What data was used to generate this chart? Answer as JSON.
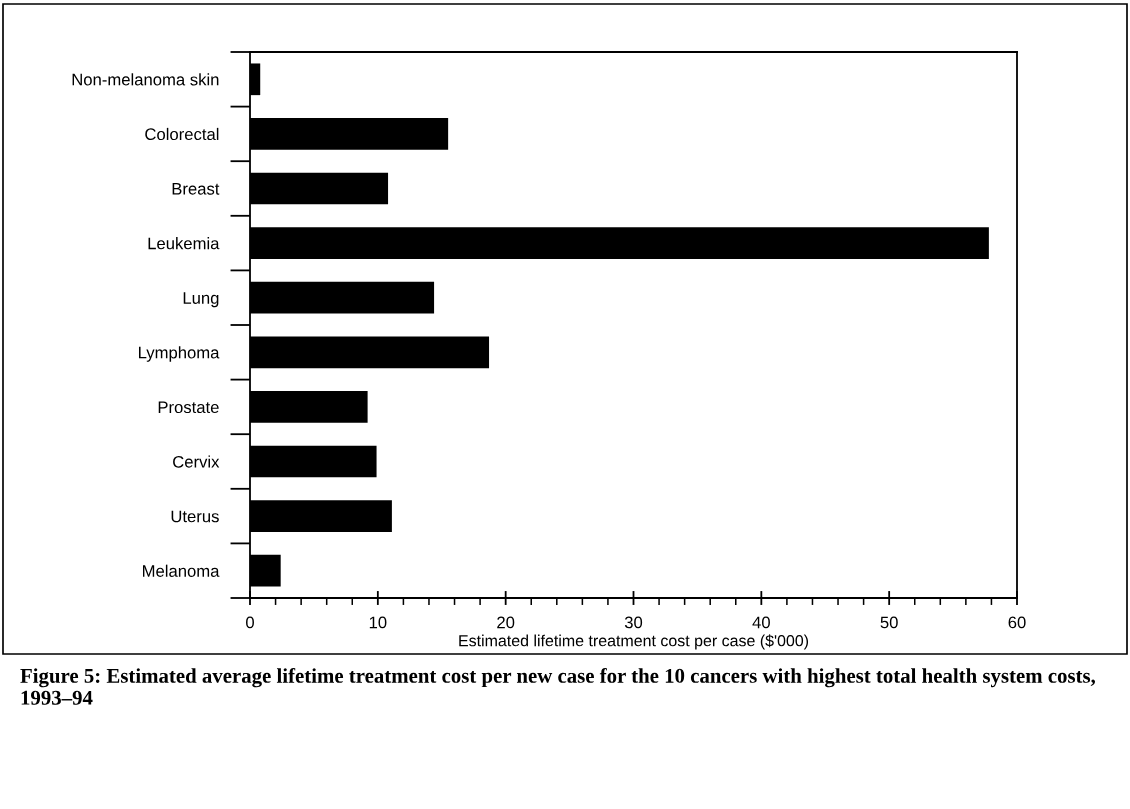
{
  "chart_data": {
    "type": "bar",
    "orientation": "horizontal",
    "categories": [
      "Non-melanoma skin",
      "Colorectal",
      "Breast",
      "Leukemia",
      "Lung",
      "Lymphoma",
      "Prostate",
      "Cervix",
      "Uterus",
      "Melanoma"
    ],
    "values": [
      0.8,
      15.5,
      10.8,
      57.8,
      14.4,
      18.7,
      9.2,
      9.9,
      11.1,
      2.4
    ],
    "color": "#000000",
    "xlim": [
      0,
      60
    ],
    "xticks": [
      0,
      10,
      20,
      30,
      40,
      50,
      60
    ],
    "xlabel": "Estimated lifetime treatment cost per case ($'000)",
    "annotations": [
      "Figure 5: Estimated average lifetime treatment cost per new case for the 10 cancers with highest total health system costs, 1993–94"
    ],
    "grid": false,
    "legend": false
  }
}
